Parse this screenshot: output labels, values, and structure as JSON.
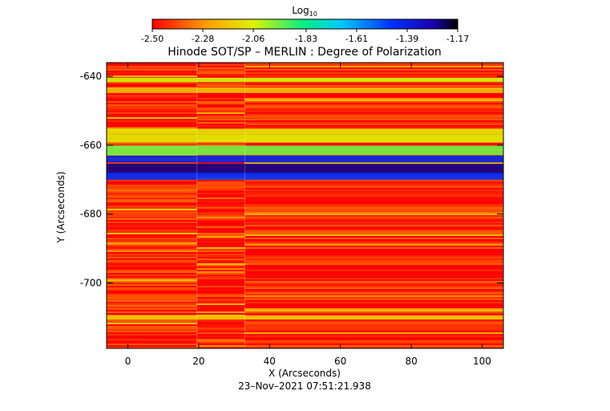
{
  "chart_data": {
    "type": "heatmap",
    "title": "Hinode SOT/SP – MERLIN : Degree of Polarization",
    "xlabel": "X (Arcseconds)",
    "ylabel": "Y (Arcseconds)",
    "timestamp": "23–Nov–2021 07:51:21.938",
    "colorbar": {
      "label_base": "Log",
      "label_sub": "10",
      "range": [
        -2.5,
        -1.17
      ],
      "ticks": [
        "-2.50",
        "-2.28",
        "-2.06",
        "-1.83",
        "-1.61",
        "-1.39",
        "-1.17"
      ],
      "tick_values": [
        -2.5,
        -2.28,
        -2.06,
        -1.83,
        -1.61,
        -1.39,
        -1.17
      ]
    },
    "xlim": [
      -6,
      106
    ],
    "ylim": [
      -719,
      -636
    ],
    "xticks": [
      0,
      20,
      40,
      60,
      80,
      100
    ],
    "xtick_labels": [
      "0",
      "20",
      "40",
      "60",
      "80",
      "100"
    ],
    "yticks": [
      -640,
      -660,
      -680,
      -700
    ],
    "ytick_labels": [
      "-640",
      "-660",
      "-680",
      "-700"
    ],
    "scan_seams_x": [
      19.5,
      33
    ],
    "bands": [
      {
        "y": -667,
        "width": 1.6,
        "value": -1.25
      },
      {
        "y": -664,
        "width": 1.0,
        "value": -1.4
      },
      {
        "y": -669,
        "width": 1.0,
        "value": -1.45
      },
      {
        "y": -661.5,
        "width": 1.4,
        "value": -1.95
      },
      {
        "y": -658,
        "width": 1.2,
        "value": -2.08
      },
      {
        "y": -656,
        "width": 0.8,
        "value": -2.1
      },
      {
        "y": -641,
        "width": 0.6,
        "value": -2.05
      },
      {
        "y": -644,
        "width": 0.8,
        "value": -2.2
      },
      {
        "y": -710,
        "width": 0.6,
        "value": -2.15
      }
    ],
    "background_value": -2.46
  }
}
